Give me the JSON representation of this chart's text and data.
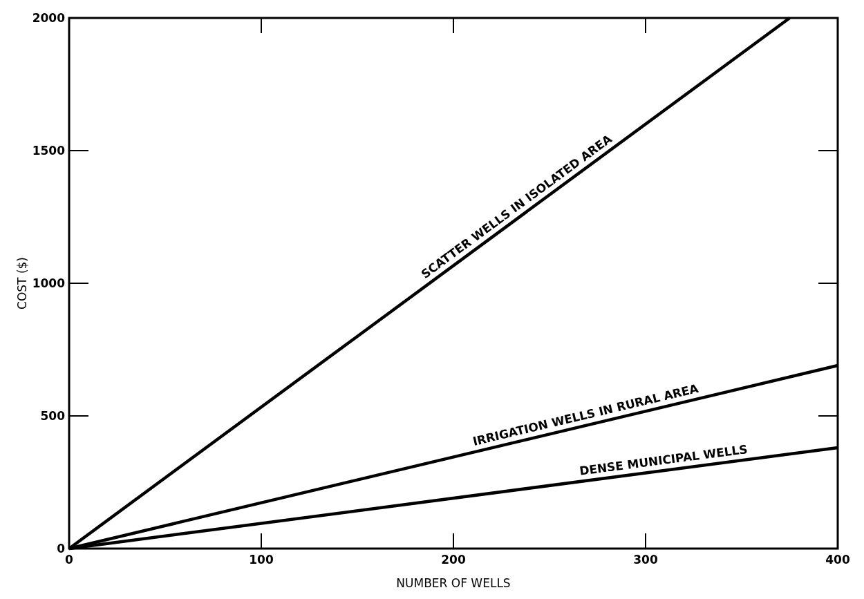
{
  "chart_data": {
    "type": "line",
    "xlabel": "NUMBER OF WELLS",
    "ylabel": "COST ($)",
    "xlim": [
      0,
      400
    ],
    "ylim": [
      0,
      2000
    ],
    "xticks": [
      0,
      100,
      200,
      300,
      400
    ],
    "yticks": [
      0,
      500,
      1000,
      1500,
      2000
    ],
    "grid": false,
    "marker": "none",
    "line_style": "solid",
    "series": [
      {
        "color": "#000000",
        "x": [
          0,
          375
        ],
        "values": [
          0,
          2000
        ]
      },
      {
        "color": "#000000",
        "x": [
          0,
          400
        ],
        "values": [
          0,
          690
        ]
      },
      {
        "color": "#000000",
        "x": [
          0,
          400
        ],
        "values": [
          0,
          380
        ]
      }
    ],
    "annotations": [
      {
        "text": "SCATTER WELLS IN ISOLATED AREA",
        "x": 236,
        "y": 1258
      },
      {
        "text": "IRRIGATION WELLS IN RURAL AREA",
        "x": 270,
        "y": 466
      },
      {
        "text": "DENSE MUNICIPAL WELLS",
        "x": 310,
        "y": 295
      }
    ]
  }
}
